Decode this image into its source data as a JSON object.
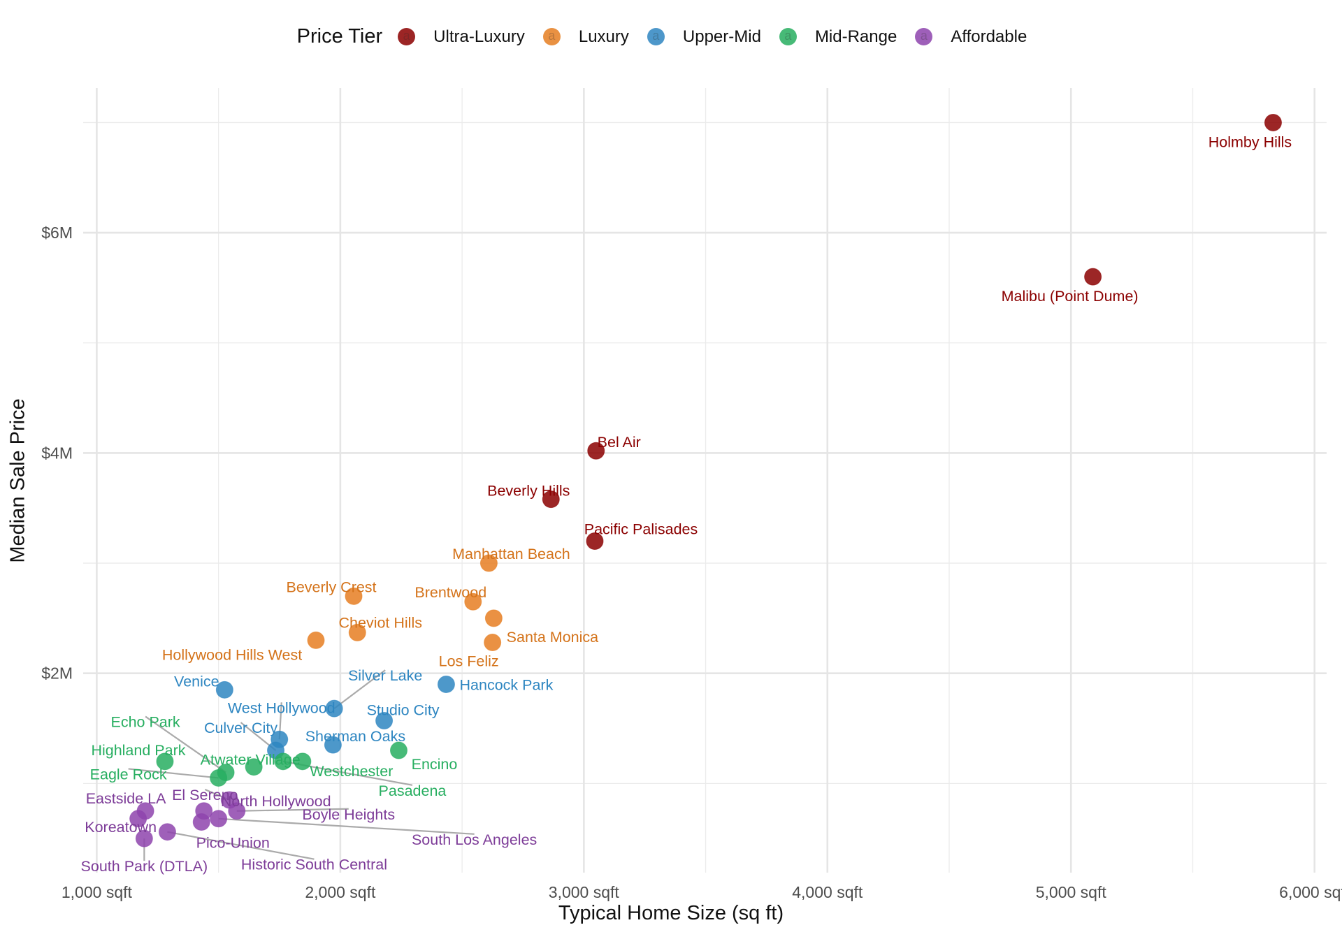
{
  "chart_data": {
    "type": "scatter",
    "title": "",
    "xlabel": "Typical Home Size (sq ft)",
    "ylabel": "Median Sale Price",
    "xlim": [
      940,
      6050
    ],
    "ylim": [
      0.32,
      7.2
    ],
    "x_ticks": [
      {
        "value": 1000,
        "label": "1,000 sqft"
      },
      {
        "value": 2000,
        "label": "2,000 sqft"
      },
      {
        "value": 3000,
        "label": "3,000 sqft"
      },
      {
        "value": 4000,
        "label": "4,000 sqft"
      },
      {
        "value": 5000,
        "label": "5,000 sqft"
      },
      {
        "value": 6000,
        "label": "6,000 sqft"
      }
    ],
    "x_minor": [
      1500,
      2500,
      3500,
      4500,
      5500
    ],
    "y_ticks": [
      {
        "value": 2,
        "label": "$2M"
      },
      {
        "value": 4,
        "label": "$4M"
      },
      {
        "value": 6,
        "label": "$6M"
      }
    ],
    "y_minor": [
      1,
      3,
      5,
      7
    ],
    "y_unit": "million USD",
    "grid": true,
    "legend": {
      "title": "Price Tier",
      "position": "top",
      "key_glyph": "a",
      "entries": [
        {
          "name": "Ultra-Luxury",
          "color": "#8B0000",
          "text_color": "#8B0000"
        },
        {
          "name": "Luxury",
          "color": "#E67E22",
          "text_color": "#D4731A"
        },
        {
          "name": "Upper-Mid",
          "color": "#2E86C1",
          "text_color": "#2E86C1"
        },
        {
          "name": "Mid-Range",
          "color": "#27AE60",
          "text_color": "#27AE60"
        },
        {
          "name": "Affordable",
          "color": "#8E44AD",
          "text_color": "#7D3C98"
        }
      ]
    },
    "series": [
      {
        "name": "Ultra-Luxury",
        "points": [
          {
            "label": "Holmby Hills",
            "x": 5830,
            "y": 7.0
          },
          {
            "label": "Malibu (Point Dume)",
            "x": 5090,
            "y": 5.6
          },
          {
            "label": "Bel Air",
            "x": 3050,
            "y": 4.02
          },
          {
            "label": "Beverly Hills",
            "x": 2865,
            "y": 3.58
          },
          {
            "label": "Pacific Palisades",
            "x": 3045,
            "y": 3.2
          }
        ]
      },
      {
        "name": "Luxury",
        "points": [
          {
            "label": "Manhattan Beach",
            "x": 2610,
            "y": 3.0
          },
          {
            "label": "Beverly Crest",
            "x": 2055,
            "y": 2.7
          },
          {
            "label": "Brentwood",
            "x": 2545,
            "y": 2.65
          },
          {
            "label": "Santa Monica",
            "x": 2630,
            "y": 2.5
          },
          {
            "label": "Cheviot Hills",
            "x": 2070,
            "y": 2.37
          },
          {
            "label": "Hollywood Hills West",
            "x": 1900,
            "y": 2.3
          },
          {
            "label": "Los Feliz",
            "x": 2625,
            "y": 2.28
          }
        ]
      },
      {
        "name": "Upper-Mid",
        "points": [
          {
            "label": "Hancock Park",
            "x": 2435,
            "y": 1.9
          },
          {
            "label": "Venice",
            "x": 1525,
            "y": 1.85
          },
          {
            "label": "Silver Lake",
            "x": 1975,
            "y": 1.68
          },
          {
            "label": "Studio City",
            "x": 2180,
            "y": 1.57
          },
          {
            "label": "West Hollywood",
            "x": 1750,
            "y": 1.4
          },
          {
            "label": "Sherman Oaks",
            "x": 1970,
            "y": 1.35
          },
          {
            "label": "Culver City",
            "x": 1735,
            "y": 1.3
          }
        ]
      },
      {
        "name": "Mid-Range",
        "points": [
          {
            "label": "Encino",
            "x": 2240,
            "y": 1.3
          },
          {
            "label": "Highland Park",
            "x": 1280,
            "y": 1.2
          },
          {
            "label": "Westchester",
            "x": 1845,
            "y": 1.2
          },
          {
            "label": "Pasadena",
            "x": 1765,
            "y": 1.2
          },
          {
            "label": "Atwater Village",
            "x": 1645,
            "y": 1.15
          },
          {
            "label": "Echo Park",
            "x": 1530,
            "y": 1.1
          },
          {
            "label": "Eagle Rock",
            "x": 1500,
            "y": 1.05
          }
        ]
      },
      {
        "name": "Affordable",
        "points": [
          {
            "label": "El Sereno",
            "x": 1545,
            "y": 0.85
          },
          {
            "label": "Eastside LA",
            "x": 1200,
            "y": 0.75
          },
          {
            "label": "North Hollywood",
            "x": 1440,
            "y": 0.75
          },
          {
            "label": "Boyle Heights",
            "x": 1575,
            "y": 0.75
          },
          {
            "label": "Koreatown",
            "x": 1170,
            "y": 0.68
          },
          {
            "label": "South Los Angeles",
            "x": 1500,
            "y": 0.68
          },
          {
            "label": "Pico-Union",
            "x": 1430,
            "y": 0.65
          },
          {
            "label": "Historic South Central",
            "x": 1290,
            "y": 0.56
          },
          {
            "label": "South Park (DTLA)",
            "x": 1195,
            "y": 0.5
          }
        ]
      }
    ]
  }
}
